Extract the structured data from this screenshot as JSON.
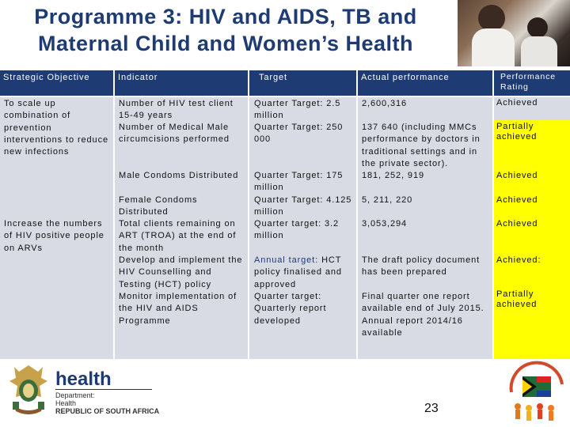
{
  "title": {
    "line1": "Programme 3: HIV and AIDS, TB and",
    "line2": "Maternal Child and Women’s Health"
  },
  "headers": {
    "objective": "Strategic Objective",
    "indicator": "Indicator",
    "target": "Target",
    "actual": "Actual performance",
    "rating": "Performance Rating"
  },
  "objectives": {
    "o1": "To scale up combination of prevention interventions to reduce new infections",
    "o2": "Increase the numbers of HIV positive people on ARVs"
  },
  "rows": [
    {
      "indicator": "Number of HIV test client 15-49 years",
      "target": "Quarter Target: 2.5 million",
      "actual": "2,600,316",
      "rating": "Achieved"
    },
    {
      "indicator": "Number of Medical Male circumcisions performed",
      "target": "Quarter Target: 250 000",
      "actual": "137 640 (including MMCs performance by doctors in traditional settings and in the private sector).",
      "rating": "Partially achieved"
    },
    {
      "indicator": "Male Condoms Distributed",
      "target": "Quarter Target: 175 million",
      "actual": "181, 252, 919",
      "rating": "Achieved"
    },
    {
      "indicator": "Female Condoms Distributed",
      "target": "Quarter Target: 4.125 million",
      "actual": "5, 211, 220",
      "rating": "Achieved"
    },
    {
      "indicator": "Total clients remaining on ART (TROA) at the end of the month",
      "target": "Quarter target: 3.2 million",
      "actual": "3,053,294",
      "rating": "Achieved"
    },
    {
      "indicator": "Develop and implement the HIV Counselling and Testing (HCT) policy",
      "target_prefix": "Annual target:",
      "target": "HCT policy finalised and approved",
      "actual": "The draft policy document has been prepared",
      "rating": "Achieved:"
    },
    {
      "indicator": "Monitor implementation of the HIV and AIDS Programme",
      "target": "Quarter target: Quarterly report developed",
      "actual": "Final quarter one report available end of July 2015. Annual report 2014/16 available",
      "rating": "Partially achieved"
    }
  ],
  "footer": {
    "logo_word": "health",
    "dept_line1": "Department:",
    "dept_line2": "Health",
    "dept_line3": "REPUBLIC OF SOUTH AFRICA",
    "page_number": "23"
  },
  "colors": {
    "header_bg": "#1f3b73",
    "body_bg": "#d8dbe4",
    "highlight": "#ffff00"
  }
}
